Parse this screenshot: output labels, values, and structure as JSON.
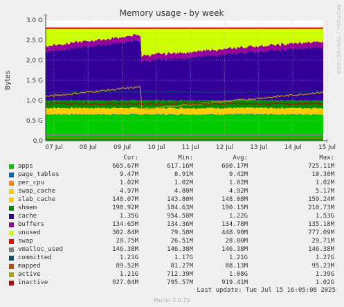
{
  "chart_data": {
    "type": "area",
    "title": "Memory usage - by week",
    "ylabel": "Bytes",
    "y_ticks": [
      "0.0",
      "0.5 G",
      "1.0 G",
      "1.5 G",
      "2.0 G",
      "2.5 G",
      "3.0 G"
    ],
    "ylim": [
      0,
      3000000000
    ],
    "x_ticks": [
      "07 Jul",
      "08 Jul",
      "09 Jul",
      "10 Jul",
      "11 Jul",
      "12 Jul",
      "13 Jul",
      "14 Jul",
      "15 Jul"
    ],
    "grid": true,
    "stack_order": [
      "apps",
      "page_tables",
      "per_cpu",
      "swap_cache",
      "slab_cache",
      "shmem",
      "cache",
      "buffers",
      "unused"
    ],
    "line_series": [
      "swap",
      "vmalloc_used",
      "committed",
      "mapped",
      "active",
      "inactive"
    ],
    "columns": [
      "Cur:",
      "Min:",
      "Avg:",
      "Max:"
    ],
    "series": [
      {
        "name": "apps",
        "color": "#00cc00",
        "cur": "665.67M",
        "min": "617.16M",
        "avg": "660.17M",
        "max": "725.11M"
      },
      {
        "name": "page_tables",
        "color": "#0066b3",
        "cur": "9.47M",
        "min": "8.91M",
        "avg": "9.42M",
        "max": "10.30M"
      },
      {
        "name": "per_cpu",
        "color": "#ff8000",
        "cur": "1.02M",
        "min": "1.02M",
        "avg": "1.02M",
        "max": "1.02M"
      },
      {
        "name": "swap_cache",
        "color": "#ffcc00",
        "cur": "4.97M",
        "min": "4.80M",
        "avg": "4.92M",
        "max": "5.17M"
      },
      {
        "name": "slab_cache",
        "color": "#ffcc00",
        "cur": "148.07M",
        "min": "143.80M",
        "avg": "148.08M",
        "max": "159.24M"
      },
      {
        "name": "shmem",
        "color": "#008f00",
        "cur": "190.92M",
        "min": "184.63M",
        "avg": "190.15M",
        "max": "210.73M"
      },
      {
        "name": "cache",
        "color": "#330099",
        "cur": "1.35G",
        "min": "954.58M",
        "avg": "1.22G",
        "max": "1.53G"
      },
      {
        "name": "buffers",
        "color": "#990099",
        "cur": "134.65M",
        "min": "134.36M",
        "avg": "134.78M",
        "max": "135.18M"
      },
      {
        "name": "unused",
        "color": "#ccff00",
        "cur": "302.84M",
        "min": "79.58M",
        "avg": "448.90M",
        "max": "777.09M"
      },
      {
        "name": "swap",
        "color": "#ff0000",
        "cur": "28.75M",
        "min": "26.51M",
        "avg": "28.00M",
        "max": "29.71M"
      },
      {
        "name": "vmalloc_used",
        "color": "#808080",
        "cur": "146.38M",
        "min": "146.38M",
        "avg": "146.38M",
        "max": "146.38M"
      },
      {
        "name": "committed",
        "color": "#005279",
        "cur": "1.21G",
        "min": "1.17G",
        "avg": "1.21G",
        "max": "1.27G"
      },
      {
        "name": "mapped",
        "color": "#c05000",
        "cur": "89.52M",
        "min": "81.27M",
        "avg": "88.13M",
        "max": "95.23M"
      },
      {
        "name": "active",
        "color": "#b8a000",
        "cur": "1.21G",
        "min": "712.39M",
        "avg": "1.08G",
        "max": "1.39G"
      },
      {
        "name": "inactive",
        "color": "#cc0000",
        "cur": "927.04M",
        "min": "795.57M",
        "avg": "919.41M",
        "max": "1.02G"
      }
    ],
    "total_line": {
      "color": "#cc0000",
      "value_bytes": 2800000000
    }
  },
  "last_update": "Last update: Tue Jul 15 16:05:08 2025",
  "footer": "Munin 2.0.73",
  "side_label": "RRDTOOL / TOBI OETIKER"
}
